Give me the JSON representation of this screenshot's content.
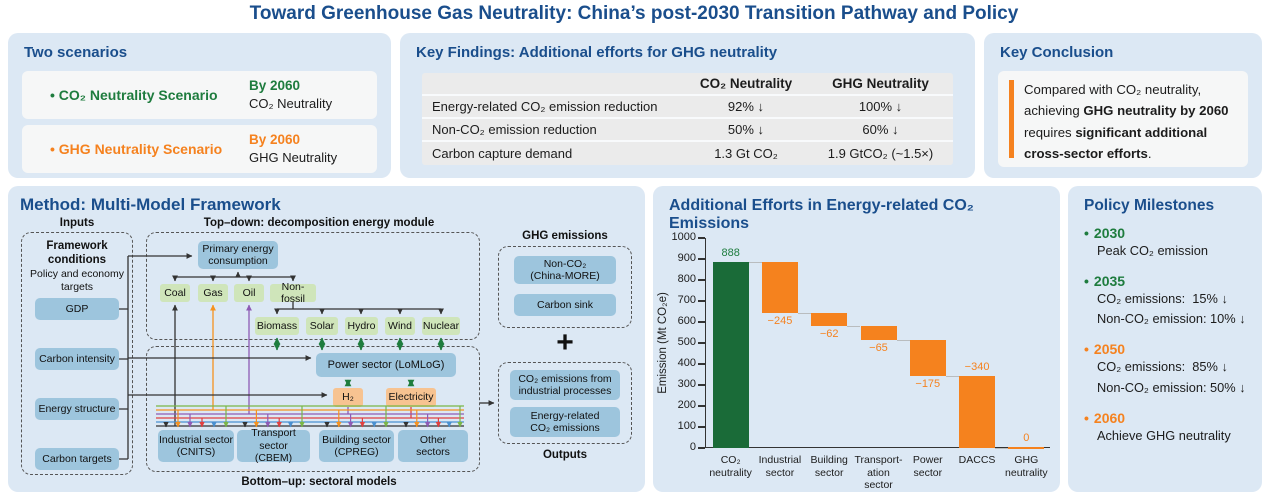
{
  "title": "Toward Greenhouse Gas Neutrality: China’s post-2030 Transition Pathway and Policy",
  "colors": {
    "heading_blue": "#1a4e8c",
    "green_text": "#1e7c3e",
    "orange_text": "#f5821f",
    "panel_bg": "#dce8f4",
    "card_bg": "#f6f7f7",
    "bar_green": "#1a6b38",
    "bar_orange": "#f5821e",
    "blue_box": "#9dc5dd",
    "green_box": "#cfe5ba",
    "orange_box": "#f7c391"
  },
  "scenarios": {
    "heading": "Two scenarios",
    "items": [
      {
        "bullet": "•",
        "name": "CO₂ Neutrality Scenario",
        "by": "By 2060",
        "label": "CO₂ Neutrality"
      },
      {
        "bullet": "•",
        "name": "GHG Neutrality Scenario",
        "by": "By 2060",
        "label": "GHG Neutrality"
      }
    ]
  },
  "key_findings": {
    "heading": "Key Findings: Additional efforts for GHG neutrality",
    "col_co2": "CO₂ Neutrality",
    "col_ghg": "GHG Neutrality",
    "rows": [
      {
        "label": "Energy-related CO₂ emission reduction",
        "co2": "92% ↓",
        "ghg": "100% ↓"
      },
      {
        "label": "Non-CO₂ emission reduction",
        "co2": "50% ↓",
        "ghg": "60% ↓"
      },
      {
        "label": "Carbon capture demand",
        "co2": "1.3 Gt CO₂",
        "ghg": "1.9 GtCO₂ (~1.5×)"
      }
    ]
  },
  "key_conclusion": {
    "heading": "Key Conclusion",
    "segments": [
      "Compared with CO₂ neutrality, achieving ",
      "GHG neutrality by 2060",
      " requires ",
      "significant additional cross-sector efforts",
      "."
    ]
  },
  "method": {
    "heading": "Method: Multi-Model Framework",
    "inputs_label": "Inputs",
    "framework_title": "Framework conditions",
    "framework_sub": "Policy and economy targets",
    "inputs": [
      "GDP",
      "Carbon intensity",
      "Energy structure",
      "Carbon targets"
    ],
    "topdown_label": "Top–down: decomposition energy module",
    "primary": {
      "l1": "Primary energy",
      "l2": "consumption"
    },
    "fuels": [
      "Coal",
      "Gas",
      "Oil",
      "Non-fossil"
    ],
    "renewables": [
      "Biomass",
      "Solar",
      "Hydro",
      "Wind",
      "Nuclear"
    ],
    "power": "Power sector (LoMLoG)",
    "carriers": [
      "H₂",
      "Electricity"
    ],
    "sectors": [
      {
        "l1": "Industrial sector",
        "l2": "(CNITS)"
      },
      {
        "l1": "Transport sector",
        "l2": "(CBEM)"
      },
      {
        "l1": "Building sector",
        "l2": "(CPREG)"
      },
      {
        "l1": "Other",
        "l2": "sectors"
      }
    ],
    "bottomup_label": "Bottom–up: sectoral models",
    "ghg_label": "GHG emissions",
    "ghg_boxes": [
      {
        "l1": "Non-CO₂",
        "l2": "(China-MORE)"
      },
      {
        "l1": "Carbon sink",
        "l2": ""
      }
    ],
    "plus_sign": "+",
    "output_boxes": [
      {
        "l1": "CO₂ emissions from",
        "l2": "industrial processes"
      },
      {
        "l1": "Energy-related",
        "l2": "CO₂ emissions"
      }
    ],
    "outputs_label": "Outputs"
  },
  "chart_data": {
    "type": "bar",
    "variant": "waterfall",
    "title": "Additional Efforts in Energy-related CO₂ Emissions",
    "ylabel": "Emission (Mt CO₂e)",
    "ylim": [
      0,
      1000
    ],
    "ytick_step": 100,
    "grid": false,
    "bars": [
      {
        "category": "CO₂ neutrality",
        "category_lines": [
          "CO₂",
          "neutrality"
        ],
        "start": 0,
        "end": 888,
        "value": 888,
        "label": "888",
        "color": "green",
        "label_side": "above"
      },
      {
        "category": "Industrial sector",
        "category_lines": [
          "Industrial",
          "sector"
        ],
        "start": 888,
        "end": 643,
        "value": -245,
        "label": "−245",
        "color": "orange",
        "label_side": "below"
      },
      {
        "category": "Building sector",
        "category_lines": [
          "Building",
          "sector"
        ],
        "start": 643,
        "end": 581,
        "value": -62,
        "label": "−62",
        "color": "orange",
        "label_side": "below"
      },
      {
        "category": "Transportation sector",
        "category_lines": [
          "Transport-",
          "ation",
          "sector"
        ],
        "start": 581,
        "end": 516,
        "value": -65,
        "label": "−65",
        "color": "orange",
        "label_side": "below"
      },
      {
        "category": "Power sector",
        "category_lines": [
          "Power",
          "sector"
        ],
        "start": 516,
        "end": 341,
        "value": -175,
        "label": "−175",
        "color": "orange",
        "label_side": "below"
      },
      {
        "category": "DACCS",
        "category_lines": [
          "DACCS"
        ],
        "start": 341,
        "end": 1,
        "value": -340,
        "label": "−340",
        "color": "orange",
        "label_side": "above"
      },
      {
        "category": "GHG neutrality",
        "category_lines": [
          "GHG",
          "neutrality"
        ],
        "start": 0,
        "end": 5,
        "value": 0,
        "label": "0",
        "color": "orange",
        "label_side": "above"
      }
    ]
  },
  "milestones": {
    "heading": "Policy Milestones",
    "items": [
      {
        "year": "2030",
        "color": "green",
        "lines": [
          "Peak CO₂ emission"
        ]
      },
      {
        "year": "2035",
        "color": "green",
        "lines": [
          "CO₂ emissions:  15% ↓",
          "Non-CO₂ emission: 10% ↓"
        ]
      },
      {
        "year": "2050",
        "color": "orange",
        "lines": [
          "CO₂ emissions:  85% ↓",
          "Non-CO₂ emission: 50% ↓"
        ]
      },
      {
        "year": "2060",
        "color": "orange",
        "lines": [
          "Achieve GHG neutrality"
        ]
      }
    ]
  }
}
